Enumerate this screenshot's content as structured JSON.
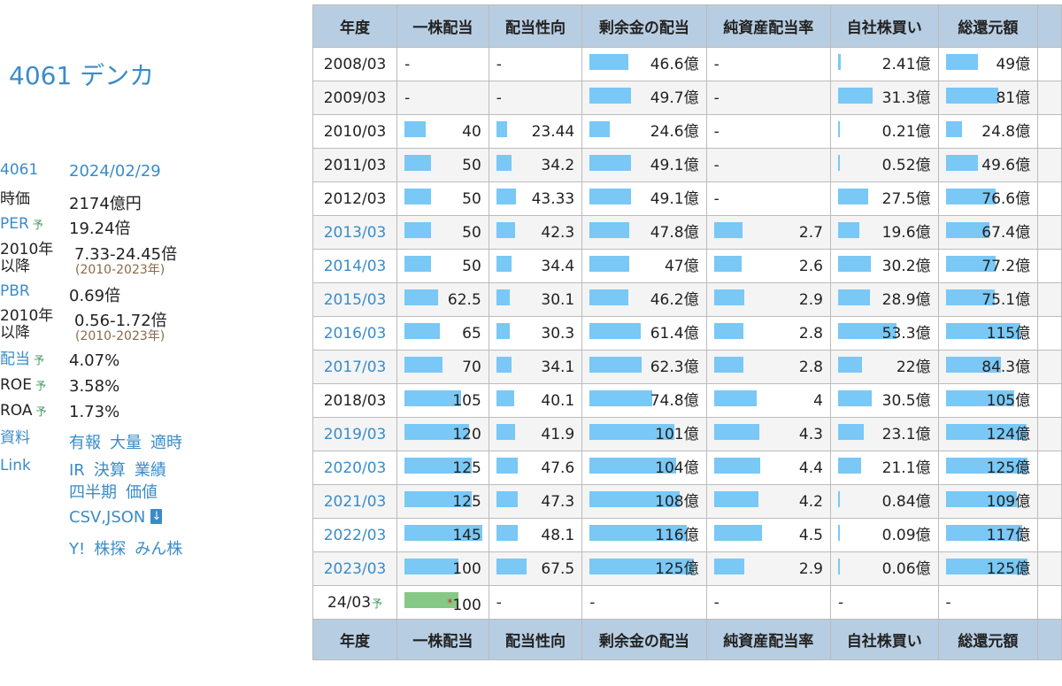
{
  "company": {
    "title": "4061 デンカ"
  },
  "info": {
    "code": "4061",
    "date": "2024/02/29",
    "market_cap_label": "時価",
    "market_cap": "2174億円",
    "per_label": "PER",
    "yo": "予",
    "per": "19.24倍",
    "since_label_1": "2010年",
    "since_label_2": "以降",
    "per_range": "7.33-24.45倍",
    "range_years": "(2010-2023年)",
    "pbr_label": "PBR",
    "pbr": "0.69倍",
    "pbr_range": "0.56-1.72倍",
    "div_label": "配当",
    "div": "4.07%",
    "roe_label": "ROE",
    "roe": "3.58%",
    "roa_label": "ROA",
    "roa": "1.73%",
    "docs_label": "資料",
    "docs": [
      "有報",
      "大量",
      "適時"
    ],
    "link_label": "Link",
    "links1": [
      "IR",
      "決算",
      "業績"
    ],
    "links2": [
      "四半期",
      "価値"
    ],
    "csv": "CSV,JSON",
    "links3": [
      "Y!",
      "株探",
      "みん株"
    ]
  },
  "table": {
    "headers": [
      "年度",
      "一株配当",
      "配当性向",
      "剰余金の配当",
      "純資産配当率",
      "自社株買い",
      "総還元額"
    ],
    "rows": [
      {
        "year": "2008/03",
        "link": false,
        "dps": "-",
        "dps_v": null,
        "payout": "-",
        "payout_v": null,
        "surplus": "46.6億",
        "surplus_v": 46.6,
        "doe": "-",
        "doe_v": null,
        "buyback": "2.41億",
        "buyback_v": 2.41,
        "total": "49億",
        "total_v": 49
      },
      {
        "year": "2009/03",
        "link": false,
        "dps": "-",
        "dps_v": null,
        "payout": "-",
        "payout_v": null,
        "surplus": "49.7億",
        "surplus_v": 49.7,
        "doe": "-",
        "doe_v": null,
        "buyback": "31.3億",
        "buyback_v": 31.3,
        "total": "81億",
        "total_v": 81
      },
      {
        "year": "2010/03",
        "link": false,
        "dps": "40",
        "dps_v": 40,
        "payout": "23.44",
        "payout_v": 23.44,
        "surplus": "24.6億",
        "surplus_v": 24.6,
        "doe": "-",
        "doe_v": null,
        "buyback": "0.21億",
        "buyback_v": 0.21,
        "total": "24.8億",
        "total_v": 24.8
      },
      {
        "year": "2011/03",
        "link": false,
        "dps": "50",
        "dps_v": 50,
        "payout": "34.2",
        "payout_v": 34.2,
        "surplus": "49.1億",
        "surplus_v": 49.1,
        "doe": "-",
        "doe_v": null,
        "buyback": "0.52億",
        "buyback_v": 0.52,
        "total": "49.6億",
        "total_v": 49.6
      },
      {
        "year": "2012/03",
        "link": false,
        "dps": "50",
        "dps_v": 50,
        "payout": "43.33",
        "payout_v": 43.33,
        "surplus": "49.1億",
        "surplus_v": 49.1,
        "doe": "-",
        "doe_v": null,
        "buyback": "27.5億",
        "buyback_v": 27.5,
        "total": "76.6億",
        "total_v": 76.6
      },
      {
        "year": "2013/03",
        "link": true,
        "dps": "50",
        "dps_v": 50,
        "payout": "42.3",
        "payout_v": 42.3,
        "surplus": "47.8億",
        "surplus_v": 47.8,
        "doe": "2.7",
        "doe_v": 2.7,
        "buyback": "19.6億",
        "buyback_v": 19.6,
        "total": "67.4億",
        "total_v": 67.4
      },
      {
        "year": "2014/03",
        "link": true,
        "dps": "50",
        "dps_v": 50,
        "payout": "34.4",
        "payout_v": 34.4,
        "surplus": "47億",
        "surplus_v": 47,
        "doe": "2.6",
        "doe_v": 2.6,
        "buyback": "30.2億",
        "buyback_v": 30.2,
        "total": "77.2億",
        "total_v": 77.2
      },
      {
        "year": "2015/03",
        "link": true,
        "dps": "62.5",
        "dps_v": 62.5,
        "payout": "30.1",
        "payout_v": 30.1,
        "surplus": "46.2億",
        "surplus_v": 46.2,
        "doe": "2.9",
        "doe_v": 2.9,
        "buyback": "28.9億",
        "buyback_v": 28.9,
        "total": "75.1億",
        "total_v": 75.1
      },
      {
        "year": "2016/03",
        "link": true,
        "dps": "65",
        "dps_v": 65,
        "payout": "30.3",
        "payout_v": 30.3,
        "surplus": "61.4億",
        "surplus_v": 61.4,
        "doe": "2.8",
        "doe_v": 2.8,
        "buyback": "53.3億",
        "buyback_v": 53.3,
        "total": "115億",
        "total_v": 115
      },
      {
        "year": "2017/03",
        "link": true,
        "dps": "70",
        "dps_v": 70,
        "payout": "34.1",
        "payout_v": 34.1,
        "surplus": "62.3億",
        "surplus_v": 62.3,
        "doe": "2.8",
        "doe_v": 2.8,
        "buyback": "22億",
        "buyback_v": 22,
        "total": "84.3億",
        "total_v": 84.3
      },
      {
        "year": "2018/03",
        "link": false,
        "dps": "105",
        "dps_v": 105,
        "payout": "40.1",
        "payout_v": 40.1,
        "surplus": "74.8億",
        "surplus_v": 74.8,
        "doe": "4",
        "doe_v": 4,
        "buyback": "30.5億",
        "buyback_v": 30.5,
        "total": "105億",
        "total_v": 105
      },
      {
        "year": "2019/03",
        "link": true,
        "dps": "120",
        "dps_v": 120,
        "payout": "41.9",
        "payout_v": 41.9,
        "surplus": "101億",
        "surplus_v": 101,
        "doe": "4.3",
        "doe_v": 4.3,
        "buyback": "23.1億",
        "buyback_v": 23.1,
        "total": "124億",
        "total_v": 124
      },
      {
        "year": "2020/03",
        "link": true,
        "dps": "125",
        "dps_v": 125,
        "payout": "47.6",
        "payout_v": 47.6,
        "surplus": "104億",
        "surplus_v": 104,
        "doe": "4.4",
        "doe_v": 4.4,
        "buyback": "21.1億",
        "buyback_v": 21.1,
        "total": "125億",
        "total_v": 125
      },
      {
        "year": "2021/03",
        "link": true,
        "dps": "125",
        "dps_v": 125,
        "payout": "47.3",
        "payout_v": 47.3,
        "surplus": "108億",
        "surplus_v": 108,
        "doe": "4.2",
        "doe_v": 4.2,
        "buyback": "0.84億",
        "buyback_v": 0.84,
        "total": "109億",
        "total_v": 109
      },
      {
        "year": "2022/03",
        "link": true,
        "dps": "145",
        "dps_v": 145,
        "payout": "48.1",
        "payout_v": 48.1,
        "surplus": "116億",
        "surplus_v": 116,
        "doe": "4.5",
        "doe_v": 4.5,
        "buyback": "0.09億",
        "buyback_v": 0.09,
        "total": "117億",
        "total_v": 117
      },
      {
        "year": "2023/03",
        "link": true,
        "dps": "100",
        "dps_v": 100,
        "payout": "67.5",
        "payout_v": 67.5,
        "surplus": "125億",
        "surplus_v": 125,
        "doe": "2.9",
        "doe_v": 2.9,
        "buyback": "0.06億",
        "buyback_v": 0.06,
        "total": "125億",
        "total_v": 125
      }
    ],
    "estimate": {
      "year": "24/03",
      "yo": "予",
      "asterisk": "*",
      "dps": "100",
      "dps_v": 100,
      "payout": "-",
      "surplus": "-",
      "doe": "-",
      "buyback": "-",
      "total": "-"
    },
    "max": {
      "dps": 145,
      "payout": 67.5,
      "surplus": 125,
      "doe": 4.5,
      "buyback": 53.3,
      "total": 125
    }
  }
}
